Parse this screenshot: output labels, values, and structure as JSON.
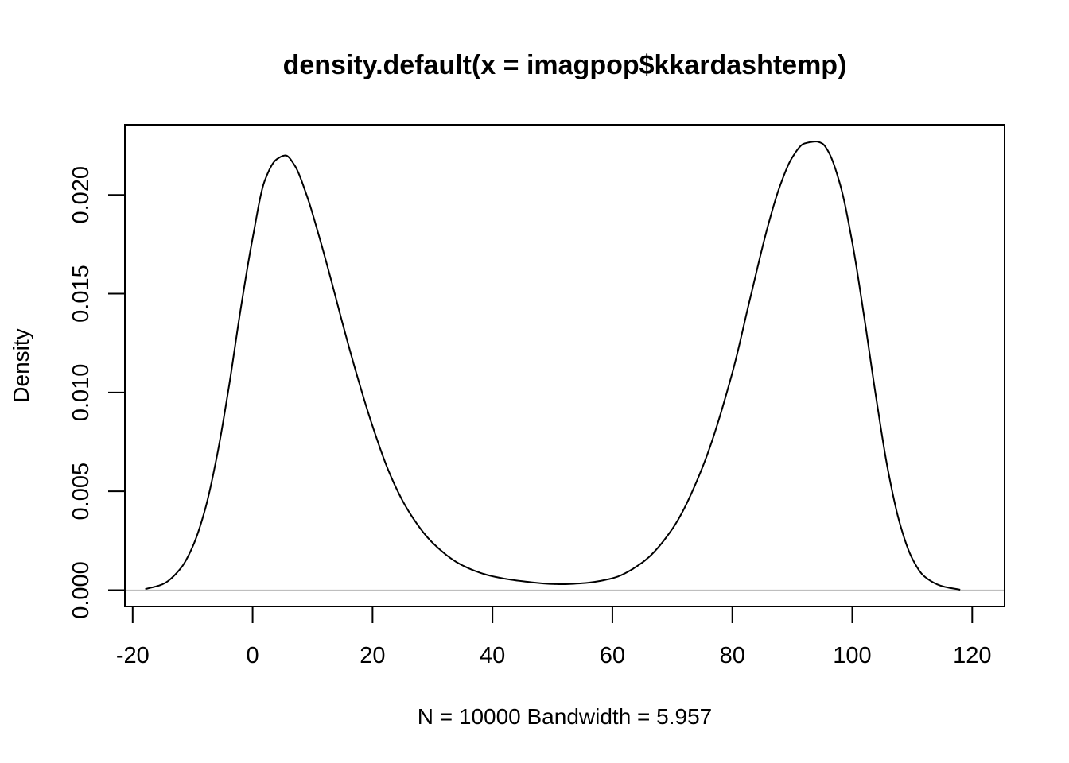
{
  "chart_data": {
    "type": "line",
    "title": "density.default(x = imagpop$kkardashtemp)",
    "xlabel": "N = 10000   Bandwidth = 5.957",
    "ylabel": "Density",
    "xlim": [
      -21.3,
      125.4
    ],
    "ylim": [
      -0.000826,
      0.02355
    ],
    "x_ticks": [
      -20,
      0,
      20,
      40,
      60,
      80,
      100,
      120
    ],
    "x_tick_labels": [
      "-20",
      "0",
      "20",
      "40",
      "60",
      "80",
      "100",
      "120"
    ],
    "y_ticks": [
      0,
      0.005,
      0.01,
      0.015,
      0.02
    ],
    "y_tick_labels": [
      "0.000",
      "0.005",
      "0.010",
      "0.015",
      "0.020"
    ],
    "grid": false,
    "zero_line": true,
    "colors": {
      "line": "#000000",
      "zero_line": "#bebebe",
      "frame": "#000000"
    },
    "series": [
      {
        "x": [
          -17.9,
          -15,
          -12,
          -10,
          -8,
          -6,
          -4,
          -2,
          0,
          2,
          4,
          5.5,
          7,
          9,
          11,
          13,
          15,
          17,
          20,
          23,
          26,
          30,
          35,
          40,
          45,
          50,
          51.5,
          55,
          60,
          65,
          70,
          75,
          80,
          83,
          86,
          88,
          90,
          92,
          94,
          95,
          96,
          98,
          100,
          102,
          104,
          106,
          108,
          110,
          112,
          115,
          118
        ],
        "y": [
          5e-05,
          0.0003,
          0.0011,
          0.0022,
          0.004,
          0.0067,
          0.0102,
          0.0142,
          0.0178,
          0.0207,
          0.0218,
          0.022,
          0.0215,
          0.02,
          0.018,
          0.0158,
          0.0135,
          0.0113,
          0.0083,
          0.0058,
          0.004,
          0.0024,
          0.00125,
          0.0007,
          0.00045,
          0.00031,
          0.0003,
          0.00035,
          0.0006,
          0.0014,
          0.0031,
          0.0062,
          0.011,
          0.0148,
          0.0185,
          0.0205,
          0.0219,
          0.0226,
          0.0227,
          0.0226,
          0.0222,
          0.0205,
          0.0176,
          0.0138,
          0.0097,
          0.006,
          0.0033,
          0.0016,
          0.0007,
          0.0002,
          2e-05
        ]
      }
    ]
  }
}
